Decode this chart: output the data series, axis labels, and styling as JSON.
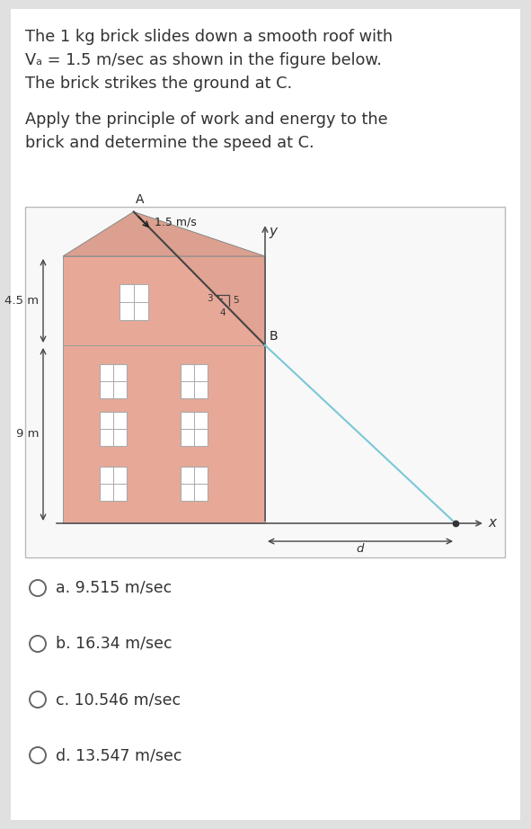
{
  "bg_color": "#e0e0e0",
  "card_color": "#ffffff",
  "title_lines": [
    "The 1 kg brick slides down a smooth roof with",
    "Vₐ = 1.5 m/sec as shown in the figure below.",
    "The brick strikes the ground at C."
  ],
  "subtitle_lines": [
    "Apply the principle of work and energy to the",
    "brick and determine the speed at C."
  ],
  "options": [
    "a. 9.515 m/sec",
    "b. 16.34 m/sec",
    "c. 10.546 m/sec",
    "d. 13.547 m/sec"
  ],
  "building_color": "#e8a898",
  "building_color_upper": "#dba090",
  "window_color": "#ffffff",
  "trajectory_color": "#7ac8d8",
  "dim_color": "#444444",
  "text_color": "#333333",
  "axis_color": "#555555"
}
